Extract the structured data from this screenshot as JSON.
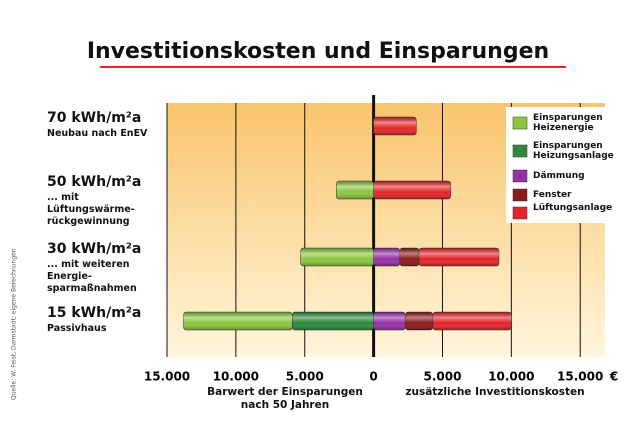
{
  "chart_data": {
    "type": "diverging-stacked-bar",
    "title": "Investitionskosten und Einsparungen",
    "categories": [
      "70 kWh/m²a",
      "50 kWh/m²a",
      "30 kWh/m²a",
      "15 kWh/m²a"
    ],
    "category_notes": [
      "Neubau nach EnEV",
      "... mit Lüftungswärme-rückgewinnung",
      "... mit weiteren Energie-sparmaßnahmen",
      "Passivhaus"
    ],
    "series": [
      {
        "name": "Einsparungen Heizenergie",
        "color": "#8cc63f",
        "values": [
          null,
          -2700,
          -5300,
          -7900
        ]
      },
      {
        "name": "Einsparungen Heizungsanlage",
        "color": "#2e8a3c",
        "values": [
          null,
          null,
          null,
          -5900
        ]
      },
      {
        "name": "Dämmung",
        "color": "#9a30a8",
        "values": [
          null,
          null,
          1900,
          2300
        ]
      },
      {
        "name": "Fenster",
        "color": "#8c1c1c",
        "values": [
          null,
          null,
          1400,
          2000
        ]
      },
      {
        "name": "Lüftungsanlage",
        "color": "#e3262a",
        "values": [
          3100,
          5600,
          5800,
          5700
        ]
      }
    ],
    "xlim": [
      -15000,
      16800
    ],
    "xticks": [
      {
        "value": -15000,
        "label": "15.000"
      },
      {
        "value": -10000,
        "label": "10.000"
      },
      {
        "value": -5000,
        "label": "5.000"
      },
      0,
      {
        "value": 5000,
        "label": "5.000"
      },
      {
        "value": 10000,
        "label": "10.000"
      },
      {
        "value": 15000,
        "label": "15.000"
      }
    ],
    "x_unit": "€",
    "x_label_left": "Barwert der Einsparungen nach 50 Jahren",
    "x_label_right": "zusätzliche Investitionskosten",
    "source": "Quelle: W. Feist, Darmstadt; eigene Berechnungen",
    "grid": true
  }
}
